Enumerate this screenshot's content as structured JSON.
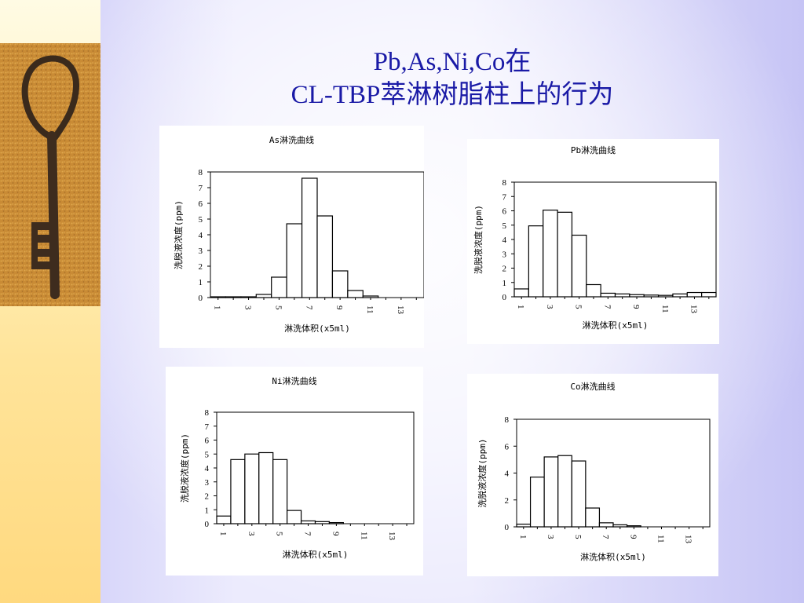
{
  "slide": {
    "title_line1": "Pb,As,Ni,Co在",
    "title_line2": "CL-TBP萃淋树脂柱上的行为",
    "accent_color": "#1a1aa6"
  },
  "decor": {
    "image": "old-key-photo"
  },
  "chart_data": [
    {
      "id": "as",
      "type": "bar",
      "title": "As淋洗曲线",
      "xlabel": "淋洗体积(x5ml)",
      "ylabel": "洗脱液浓度(ppm)",
      "x": [
        1,
        2,
        3,
        4,
        5,
        6,
        7,
        8,
        9,
        10,
        11,
        12,
        13,
        14
      ],
      "x_tick_labels": [
        "1",
        "3",
        "5",
        "7",
        "9",
        "11",
        "13"
      ],
      "values": [
        0.05,
        0.05,
        0.05,
        0.2,
        1.3,
        4.7,
        7.6,
        5.2,
        1.7,
        0.45,
        0.1,
        0,
        0,
        0
      ],
      "ylim": [
        0,
        8
      ],
      "y_ticks": [
        0,
        1,
        2,
        3,
        4,
        5,
        6,
        7,
        8
      ],
      "grid": false,
      "legend": "none"
    },
    {
      "id": "pb",
      "type": "bar",
      "title": "Pb淋洗曲线",
      "xlabel": "淋洗体积(x5ml)",
      "ylabel": "洗脱液浓度(ppm)",
      "x": [
        1,
        2,
        3,
        4,
        5,
        6,
        7,
        8,
        9,
        10,
        11,
        12,
        13,
        14
      ],
      "x_tick_labels": [
        "1",
        "3",
        "5",
        "7",
        "9",
        "11",
        "13"
      ],
      "values": [
        0.55,
        4.95,
        6.05,
        5.9,
        4.3,
        0.85,
        0.25,
        0.2,
        0.15,
        0.12,
        0.1,
        0.2,
        0.3,
        0.3
      ],
      "ylim": [
        0,
        8
      ],
      "y_ticks": [
        0,
        1,
        2,
        3,
        4,
        5,
        6,
        7,
        8
      ],
      "grid": false,
      "legend": "none"
    },
    {
      "id": "ni",
      "type": "bar",
      "title": "Ni淋洗曲线",
      "xlabel": "淋洗体积(x5ml)",
      "ylabel": "洗脱液浓度(ppm)",
      "x": [
        1,
        2,
        3,
        4,
        5,
        6,
        7,
        8,
        9,
        10,
        11,
        12,
        13,
        14
      ],
      "x_tick_labels": [
        "1",
        "3",
        "5",
        "7",
        "9",
        "11",
        "13"
      ],
      "values": [
        0.55,
        4.6,
        5.0,
        5.1,
        4.6,
        0.95,
        0.2,
        0.15,
        0.08,
        0,
        0,
        0,
        0,
        0
      ],
      "ylim": [
        0,
        8
      ],
      "y_ticks": [
        0,
        1,
        2,
        3,
        4,
        5,
        6,
        7,
        8
      ],
      "grid": false,
      "legend": "none"
    },
    {
      "id": "co",
      "type": "bar",
      "title": "Co淋洗曲线",
      "xlabel": "淋洗体积(x5ml)",
      "ylabel": "洗脱液浓度(ppm)",
      "x": [
        1,
        2,
        3,
        4,
        5,
        6,
        7,
        8,
        9,
        10,
        11,
        12,
        13,
        14
      ],
      "x_tick_labels": [
        "1",
        "3",
        "5",
        "7",
        "9",
        "11",
        "13"
      ],
      "values": [
        0.2,
        3.7,
        5.2,
        5.3,
        4.9,
        1.4,
        0.3,
        0.15,
        0.08,
        0,
        0,
        0,
        0,
        0
      ],
      "ylim": [
        0,
        8
      ],
      "y_ticks": [
        0,
        2,
        4,
        6,
        8
      ],
      "grid": false,
      "legend": "none"
    }
  ]
}
